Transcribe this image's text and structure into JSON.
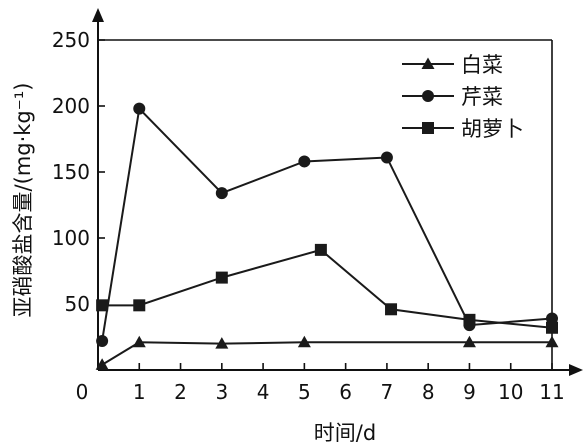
{
  "chart_data": {
    "type": "line",
    "title": "",
    "xlabel": "时间/d",
    "ylabel": "亚硝酸盐含量/(mg·kg⁻¹)",
    "xlim": [
      0,
      11
    ],
    "ylim": [
      0,
      250
    ],
    "x_ticks": [
      0,
      1,
      2,
      3,
      4,
      5,
      6,
      7,
      8,
      9,
      10,
      11
    ],
    "y_ticks": [
      50,
      100,
      150,
      200,
      250
    ],
    "grid": false,
    "legend_position": "top-right",
    "series": [
      {
        "name": "白菜",
        "marker": "triangle",
        "color": "#1a1a1a",
        "x": [
          0.1,
          1,
          3,
          5,
          9,
          11
        ],
        "y": [
          4,
          21,
          20,
          21,
          21,
          21
        ]
      },
      {
        "name": "芹菜",
        "marker": "circle",
        "color": "#1a1a1a",
        "x": [
          0.1,
          1,
          3,
          5,
          7,
          9,
          11
        ],
        "y": [
          22,
          198,
          134,
          158,
          161,
          34,
          39
        ]
      },
      {
        "name": "胡萝卜",
        "marker": "square",
        "color": "#1a1a1a",
        "x": [
          0.1,
          1,
          3,
          5.4,
          7.1,
          9,
          11
        ],
        "y": [
          49,
          49,
          70,
          91,
          46,
          38,
          32
        ]
      }
    ]
  }
}
